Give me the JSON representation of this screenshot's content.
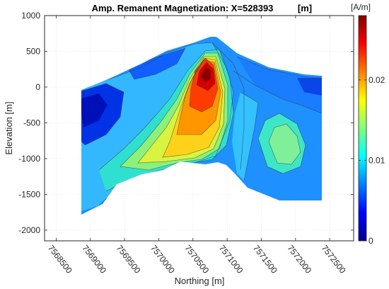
{
  "chart_data": {
    "type": "heatmap",
    "title": "Amp. Remanent Magnetization: X=528393",
    "title_unit": "[m]",
    "xlabel": "Northing [m]",
    "ylabel": "Elevation [m]",
    "x_ticks": [
      "7568500",
      "7569000",
      "7569500",
      "7570000",
      "7570500",
      "7571000",
      "7571500",
      "7572000",
      "7572500"
    ],
    "x_tick_values": [
      7568500,
      7569000,
      7569500,
      7570000,
      7570500,
      7571000,
      7571500,
      7572000,
      7572500
    ],
    "y_ticks": [
      "1000",
      "500",
      "0",
      "-500",
      "-1000",
      "-1500",
      "-2000"
    ],
    "y_tick_values": [
      1000,
      500,
      0,
      -500,
      -1000,
      -1500,
      -2000
    ],
    "xlim": [
      7568330,
      7572850
    ],
    "ylim": [
      -2150,
      1000
    ],
    "grid": true,
    "colorbar": {
      "unit": "[A/m]",
      "ticks": [
        "0",
        "0.01",
        "0.02"
      ],
      "tick_values": [
        0,
        0.01,
        0.02
      ],
      "range": [
        0,
        0.028
      ],
      "colormap": "jet",
      "position": "right"
    },
    "section_top_profile": {
      "northing": [
        7568950,
        7569300,
        7569700,
        7570050,
        7570400,
        7570700,
        7570850,
        7571000,
        7571300,
        7571700,
        7572100,
        7572350
      ],
      "elevation": [
        -70,
        70,
        300,
        500,
        620,
        690,
        720,
        580,
        380,
        240,
        150,
        150
      ]
    },
    "section_bottom_profile": {
      "northing": [
        7568950,
        7569300,
        7569700,
        7570050,
        7570400,
        7570700,
        7570850,
        7571000,
        7571300,
        7571500,
        7571800,
        7572100,
        7572350
      ],
      "elevation": [
        -1850,
        -1650,
        -1450,
        -1300,
        -1230,
        -1200,
        -1100,
        -1100,
        -1350,
        -1420,
        -1500,
        -1620,
        -1620
      ]
    },
    "anomaly_peak": {
      "northing": 7570700,
      "elevation": 250,
      "value": 0.027
    },
    "secondary_high": {
      "northing": 7571950,
      "elevation": -600,
      "value": 0.011
    }
  }
}
